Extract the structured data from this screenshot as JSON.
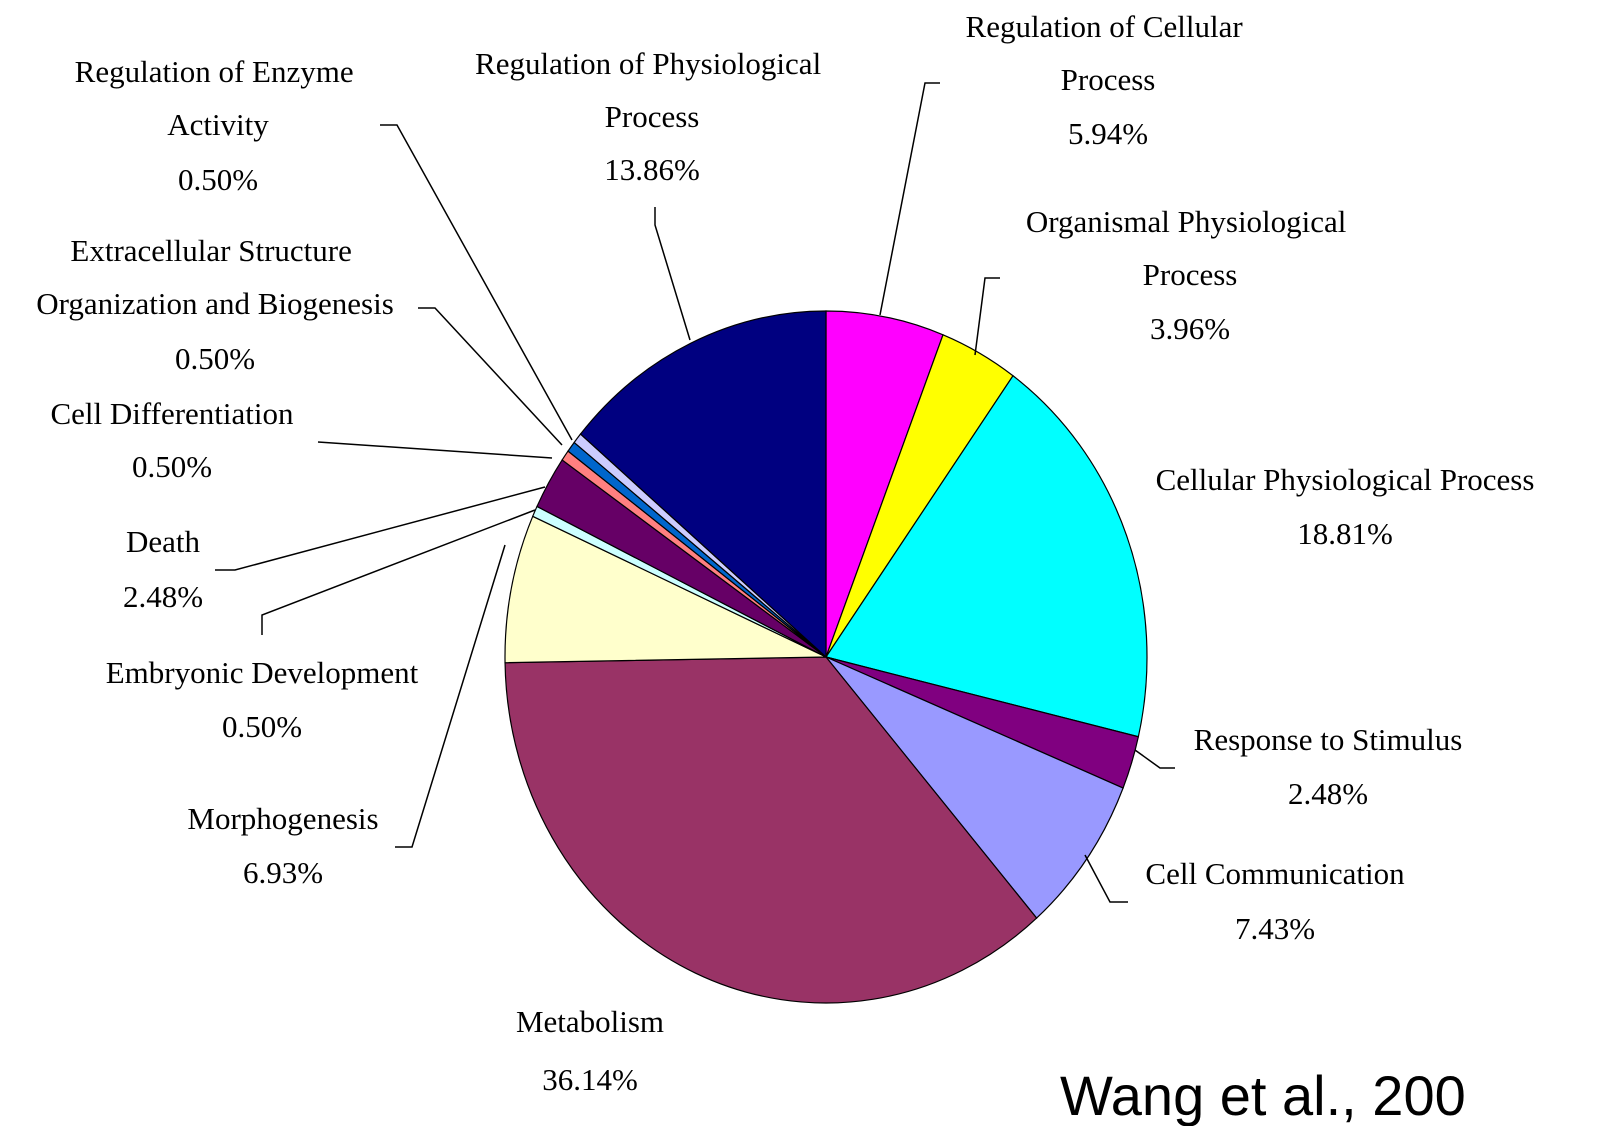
{
  "chart_data": {
    "type": "pie",
    "categories": [
      "Regulation of Cellular Process",
      "Organismal Physiological Process",
      "Cellular Physiological Process",
      "Response to Stimulus",
      "Cell Communication",
      "Metabolism",
      "Morphogenesis",
      "Embryonic Development",
      "Death",
      "Cell Differentiation",
      "Extracellular Structure Organization and Biogenesis",
      "Regulation of Enzyme Activity",
      "Regulation of Physiological Process"
    ],
    "values": [
      5.94,
      3.96,
      18.81,
      2.48,
      7.43,
      36.14,
      6.93,
      0.5,
      2.48,
      0.5,
      0.5,
      0.5,
      13.86
    ],
    "value_labels": [
      "5.94%",
      "3.96%",
      "18.81%",
      "2.48%",
      "7.43%",
      "36.14%",
      "6.93%",
      "0.50%",
      "2.48%",
      "0.50%",
      "0.50%",
      "0.50%",
      "13.86%"
    ],
    "colors": [
      "#ff00ff",
      "#ffff00",
      "#00ffff",
      "#800080",
      "#9999ff",
      "#993366",
      "#ffffcc",
      "#ccffff",
      "#660066",
      "#ff8080",
      "#0066cc",
      "#ccccff",
      "#000080"
    ],
    "annotation": "Wang et al., 200"
  }
}
